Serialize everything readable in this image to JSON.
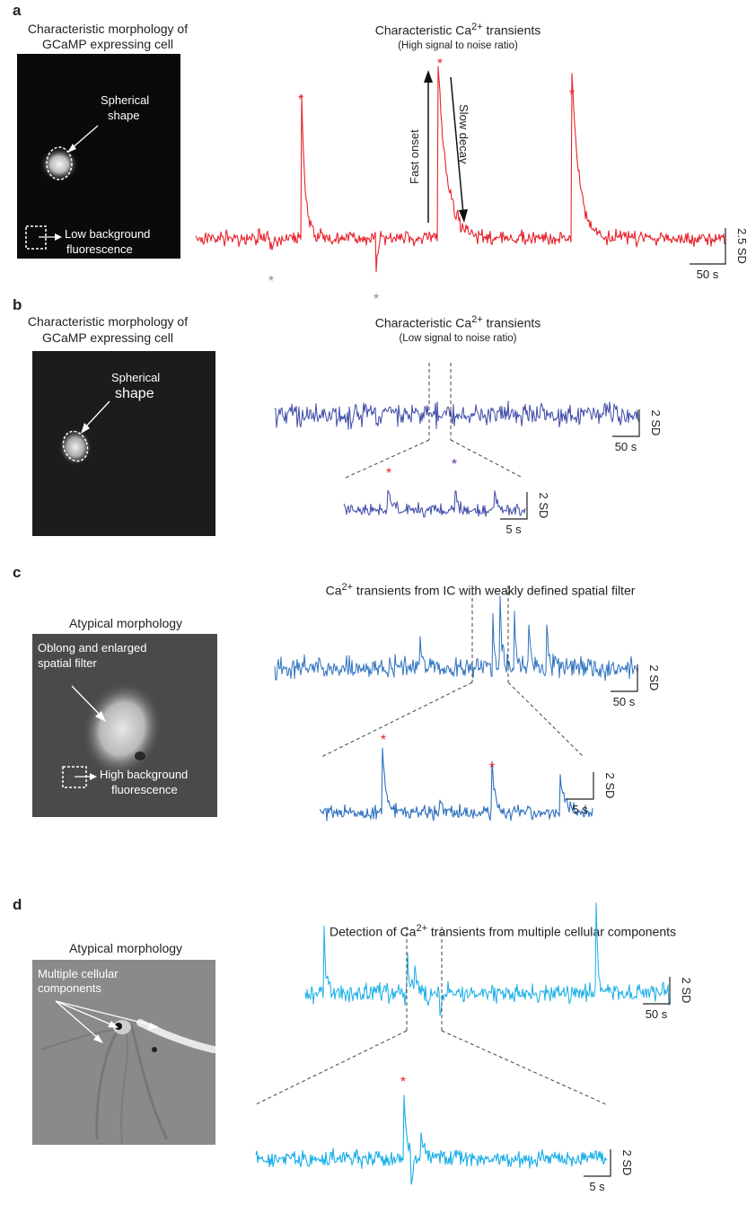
{
  "panels": {
    "a": {
      "letter": "a",
      "image_caption_line1": "Characteristic morphology of",
      "image_caption_line2": "GCaMP expressing cell",
      "label_shape_line1": "Spherical",
      "label_shape_line2": "shape",
      "label_bg_line1": "Low background",
      "label_bg_line2": "fluorescence",
      "trace_title": "Characteristic Ca2+ transients",
      "trace_subtitle": "(High signal to noise ratio)",
      "onset_label": "Fast onset",
      "decay_label": "Slow decay",
      "scale_y": "2.5 SD",
      "scale_x": "50 s",
      "color": "#e8232c"
    },
    "b": {
      "letter": "b",
      "image_caption_line1": "Characteristic morphology of",
      "image_caption_line2": "GCaMP expressing cell",
      "label_shape_line1": "Spherical",
      "label_shape_line2": "shape",
      "trace_title": "Characteristic Ca2+ transients",
      "trace_subtitle": "(Low signal to noise ratio)",
      "scale_y": "2 SD",
      "scale_x": "50 s",
      "zoom_scale_y": "2 SD",
      "zoom_scale_x": "5 s",
      "color": "#3e4aa8"
    },
    "c": {
      "letter": "c",
      "image_caption": "Atypical morphology",
      "label_filter_line1": "Oblong and enlarged",
      "label_filter_line2": "spatial filter",
      "label_bg_line1": "High background",
      "label_bg_line2": "fluorescence",
      "trace_title": "Ca2+ transients from IC with weakly defined spatial filter",
      "scale_y": "2 SD",
      "scale_x": "50 s",
      "zoom_scale_y": "2 SD",
      "zoom_scale_x": "5 s",
      "color": "#2f72c0"
    },
    "d": {
      "letter": "d",
      "image_caption": "Atypical morphology",
      "label_components_line1": "Multiple cellular",
      "label_components_line2": "components",
      "trace_title": "Detection of Ca2+ transients from multiple cellular components",
      "scale_y": "2 SD",
      "scale_x": "50 s",
      "zoom_scale_y": "2 SD",
      "zoom_scale_x": "5 s",
      "color": "#19aee8"
    }
  },
  "markers": {
    "transient_star": "*",
    "red": "#e8232c",
    "gray": "#8a8a8a",
    "purple": "#6a2fa0"
  }
}
